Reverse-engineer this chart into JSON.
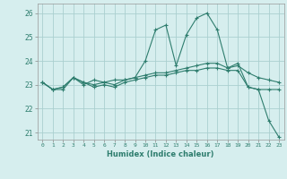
{
  "xlabel": "Humidex (Indice chaleur)",
  "bg_color": "#d6eeee",
  "grid_color": "#aacfcf",
  "line_color": "#2e7d6e",
  "xlim": [
    -0.5,
    23.5
  ],
  "ylim": [
    20.7,
    26.4
  ],
  "yticks": [
    21,
    22,
    23,
    24,
    25,
    26
  ],
  "xticks": [
    0,
    1,
    2,
    3,
    4,
    5,
    6,
    7,
    8,
    9,
    10,
    11,
    12,
    13,
    14,
    15,
    16,
    17,
    18,
    19,
    20,
    21,
    22,
    23
  ],
  "curve1_x": [
    0,
    1,
    2,
    3,
    4,
    5,
    6,
    7,
    8,
    9,
    10,
    11,
    12,
    13,
    14,
    15,
    16,
    17,
    18,
    19,
    20,
    21,
    22,
    23
  ],
  "curve1_y": [
    23.1,
    22.8,
    22.8,
    23.3,
    23.0,
    23.2,
    23.1,
    23.0,
    23.2,
    23.3,
    24.0,
    25.3,
    25.5,
    23.8,
    25.1,
    25.8,
    26.0,
    25.3,
    23.7,
    23.9,
    22.9,
    22.8,
    22.8,
    22.8
  ],
  "curve2_x": [
    0,
    1,
    2,
    3,
    4,
    5,
    6,
    7,
    8,
    9,
    10,
    11,
    12,
    13,
    14,
    15,
    16,
    17,
    18,
    19,
    20,
    21,
    22,
    23
  ],
  "curve2_y": [
    23.1,
    22.8,
    22.9,
    23.3,
    23.1,
    23.0,
    23.1,
    23.2,
    23.2,
    23.3,
    23.4,
    23.5,
    23.5,
    23.6,
    23.7,
    23.8,
    23.9,
    23.9,
    23.7,
    23.8,
    23.5,
    23.3,
    23.2,
    23.1
  ],
  "curve3_x": [
    0,
    1,
    2,
    3,
    4,
    5,
    6,
    7,
    8,
    9,
    10,
    11,
    12,
    13,
    14,
    15,
    16,
    17,
    18,
    19,
    20,
    21,
    22,
    23
  ],
  "curve3_y": [
    23.1,
    22.8,
    22.9,
    23.3,
    23.1,
    22.9,
    23.0,
    22.9,
    23.1,
    23.2,
    23.3,
    23.4,
    23.4,
    23.5,
    23.6,
    23.6,
    23.7,
    23.7,
    23.6,
    23.6,
    22.9,
    22.8,
    21.5,
    20.8
  ]
}
